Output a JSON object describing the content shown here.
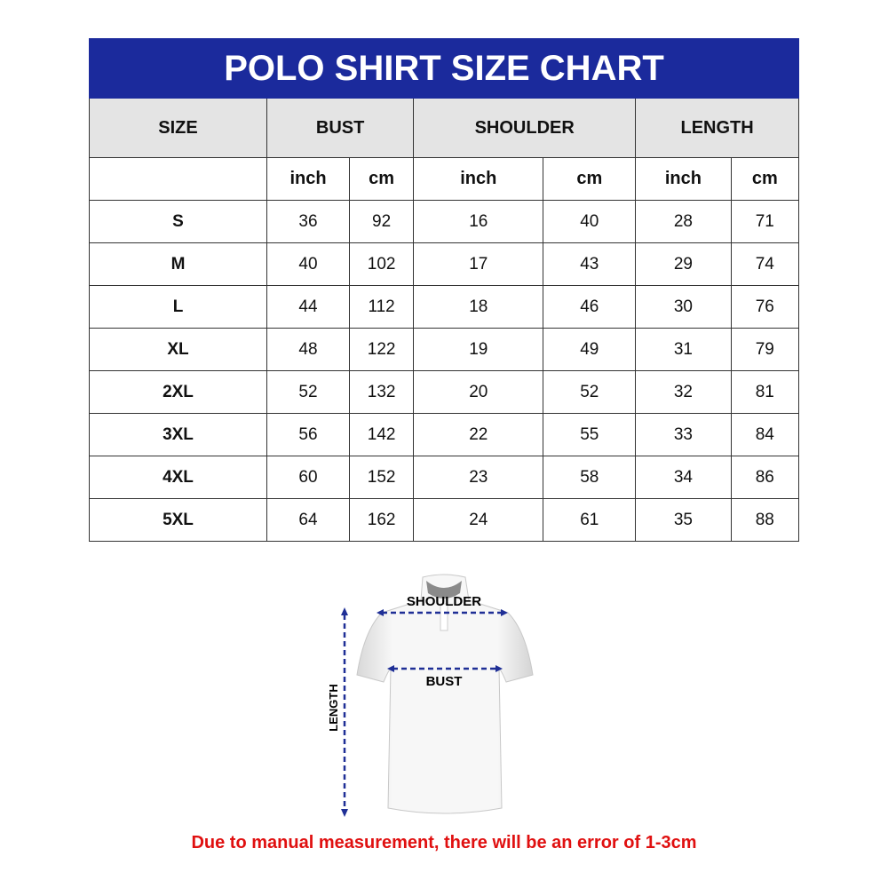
{
  "title": "POLO SHIRT SIZE CHART",
  "headers": [
    "SIZE",
    "BUST",
    "SHOULDER",
    "LENGTH"
  ],
  "units": [
    "inch",
    "cm",
    "inch",
    "cm",
    "inch",
    "cm"
  ],
  "rows": [
    [
      "S",
      "36",
      "92",
      "16",
      "40",
      "28",
      "71"
    ],
    [
      "M",
      "40",
      "102",
      "17",
      "43",
      "29",
      "74"
    ],
    [
      "L",
      "44",
      "112",
      "18",
      "46",
      "30",
      "76"
    ],
    [
      "XL",
      "48",
      "122",
      "19",
      "49",
      "31",
      "79"
    ],
    [
      "2XL",
      "52",
      "132",
      "20",
      "52",
      "32",
      "81"
    ],
    [
      "3XL",
      "56",
      "142",
      "22",
      "55",
      "33",
      "84"
    ],
    [
      "4XL",
      "60",
      "152",
      "23",
      "58",
      "34",
      "86"
    ],
    [
      "5XL",
      "64",
      "162",
      "24",
      "61",
      "35",
      "88"
    ]
  ],
  "diagram": {
    "shoulder": "SHOULDER",
    "bust": "BUST",
    "length": "LENGTH"
  },
  "note": "Due to manual measurement, there will be an error of 1-3cm",
  "colors": {
    "header": "#1b2a9c",
    "note": "#e01010",
    "arrow": "#1f2f96"
  }
}
